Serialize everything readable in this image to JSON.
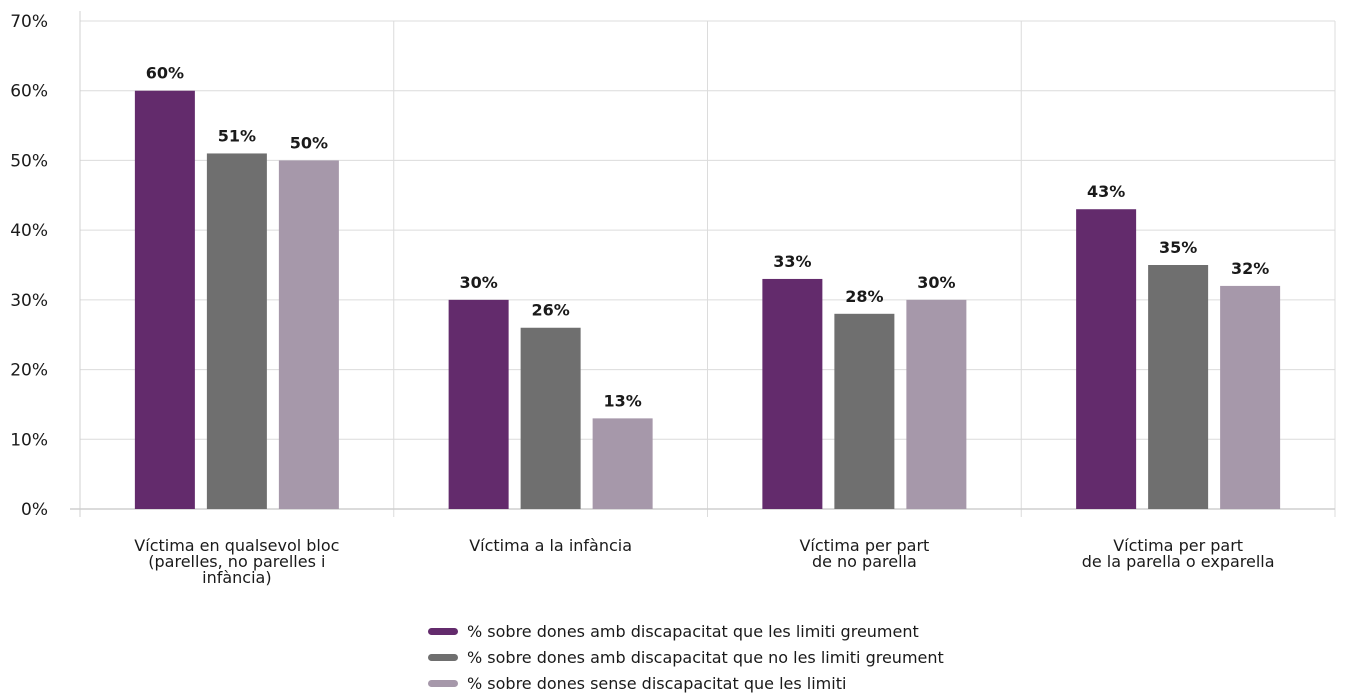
{
  "chart_data": {
    "type": "bar",
    "categories": [
      "Víctima en qualsevol bloc\n(parelles, no parelles i\ninfància)",
      "Víctima a la infància",
      "Víctima per part\nde no parella",
      "Víctima per part\nde la parella o exparella"
    ],
    "series": [
      {
        "name": "% sobre dones amb discapacitat que les limiti greument",
        "color": "#632b6c",
        "values": [
          60,
          30,
          33,
          43
        ],
        "labels": [
          "60%",
          "30%",
          "33%",
          "43%"
        ]
      },
      {
        "name": "% sobre dones amb discapacitat que no les limiti greument",
        "color": "#6f6f6f",
        "values": [
          51,
          26,
          28,
          35
        ],
        "labels": [
          "51%",
          "26%",
          "28%",
          "35%"
        ]
      },
      {
        "name": "% sobre dones sense discapacitat que les limiti",
        "color": "#a698aa",
        "values": [
          50,
          13,
          30,
          32
        ],
        "labels": [
          "50%",
          "13%",
          "30%",
          "32%"
        ]
      }
    ],
    "yticks": [
      "0%",
      "10%",
      "20%",
      "30%",
      "40%",
      "50%",
      "60%",
      "70%"
    ],
    "ylim": [
      0,
      70
    ],
    "grid": true,
    "legend": "bottom-center",
    "title": "",
    "xlabel": "",
    "ylabel": ""
  }
}
